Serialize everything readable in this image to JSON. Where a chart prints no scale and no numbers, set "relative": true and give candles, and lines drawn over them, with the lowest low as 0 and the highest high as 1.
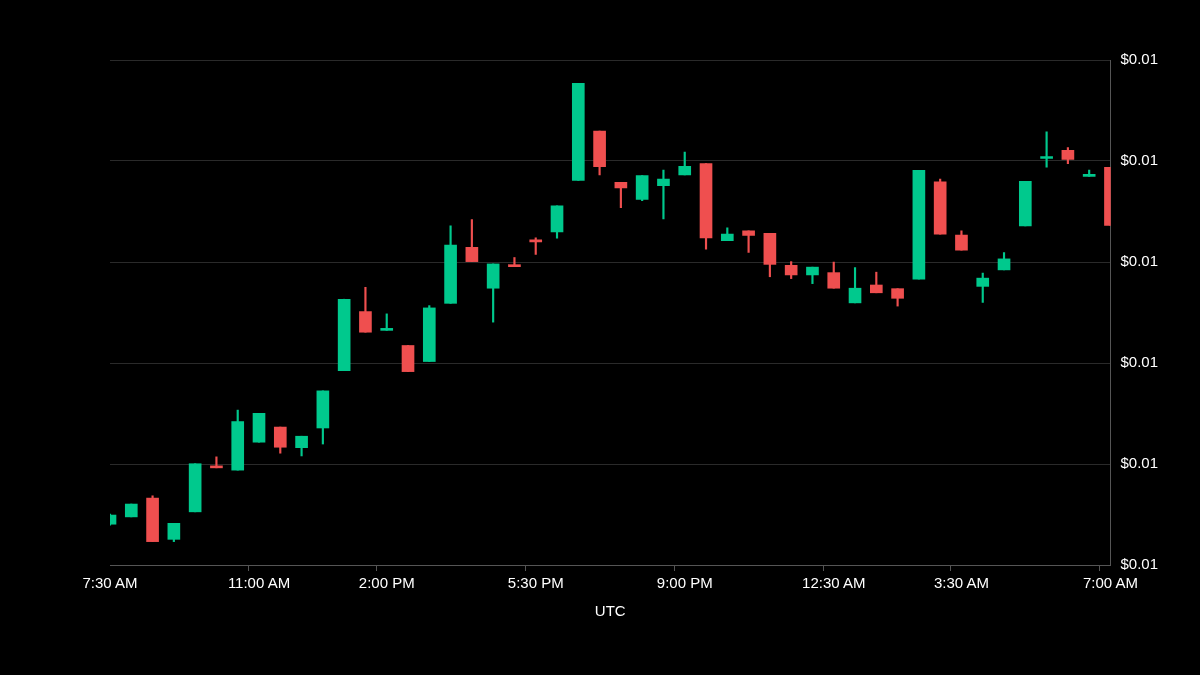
{
  "chart_data": {
    "type": "candlestick",
    "relative": true,
    "xlabel": "UTC",
    "categories": [
      "7:30 AM",
      null,
      null,
      null,
      null,
      null,
      null,
      "11:00 AM",
      null,
      null,
      null,
      null,
      null,
      "2:00 PM",
      null,
      null,
      null,
      null,
      null,
      null,
      "5:30 PM",
      null,
      null,
      null,
      null,
      null,
      null,
      "9:00 PM",
      null,
      null,
      null,
      null,
      null,
      null,
      "12:30 AM",
      null,
      null,
      null,
      null,
      null,
      "3:30 AM",
      null,
      null,
      null,
      null,
      null,
      null,
      "7:00 AM"
    ],
    "annotations": [
      "$0.01",
      "$0.01",
      "$0.01",
      "$0.01",
      "$0.01",
      "$0.01"
    ],
    "ohlc": [
      [
        0.038,
        0.06,
        0.036,
        0.058
      ],
      [
        0.054,
        0.082,
        0.054,
        0.082
      ],
      [
        0.095,
        0.1,
        0,
        0
      ],
      [
        0.005,
        0.04,
        0,
        0.04
      ],
      [
        0.065,
        0.17,
        0.065,
        0.17
      ],
      [
        0.165,
        0.185,
        0.161,
        0.161
      ],
      [
        0.156,
        0.287,
        0.156,
        0.262
      ],
      [
        0.217,
        0.28,
        0.217,
        0.28
      ],
      [
        0.25,
        0.25,
        0.193,
        0.206
      ],
      [
        0.205,
        0.23,
        0.187,
        0.23
      ],
      [
        0.248,
        0.329,
        0.213,
        0.329
      ],
      [
        0.373,
        0.529,
        0.373,
        0.529
      ],
      [
        0.502,
        0.555,
        0.457,
        0.457
      ],
      [
        0.461,
        0.497,
        0.461,
        0.463
      ],
      [
        0.428,
        0.428,
        0.371,
        0.371
      ],
      [
        0.393,
        0.515,
        0.393,
        0.51
      ],
      [
        0.52,
        0.689,
        0.52,
        0.647
      ],
      [
        0.642,
        0.703,
        0.611,
        0.611
      ],
      [
        0.553,
        0.606,
        0.479,
        0.606
      ],
      [
        0.604,
        0.62,
        0.6,
        0.6
      ],
      [
        0.658,
        0.663,
        0.627,
        0.654
      ],
      [
        0.676,
        0.733,
        0.662,
        0.733
      ],
      [
        0.788,
        1,
        0.788,
        1
      ],
      [
        0.896,
        0.896,
        0.8,
        0.818
      ],
      [
        0.784,
        0.784,
        0.729,
        0.772
      ],
      [
        0.747,
        0.799,
        0.744,
        0.799
      ],
      [
        0.777,
        0.811,
        0.704,
        0.791
      ],
      [
        0.8,
        0.85,
        0.8,
        0.819
      ],
      [
        0.825,
        0.825,
        0.638,
        0.663
      ],
      [
        0.657,
        0.685,
        0.657,
        0.671
      ],
      [
        0.678,
        0.678,
        0.631,
        0.668
      ],
      [
        0.673,
        0.673,
        0.578,
        0.605
      ],
      [
        0.603,
        0.611,
        0.574,
        0.582
      ],
      [
        0.582,
        0.599,
        0.563,
        0.599
      ],
      [
        0.587,
        0.61,
        0.553,
        0.553
      ],
      [
        0.521,
        0.598,
        0.521,
        0.553
      ],
      [
        0.56,
        0.588,
        0.543,
        0.543
      ],
      [
        0.552,
        0.552,
        0.514,
        0.531
      ],
      [
        0.573,
        0.81,
        0.573,
        0.81
      ],
      [
        0.785,
        0.791,
        0.671,
        0.671
      ],
      [
        0.669,
        0.678,
        0.636,
        0.636
      ],
      [
        0.557,
        0.586,
        0.522,
        0.575
      ],
      [
        0.593,
        0.631,
        0.593,
        0.617
      ],
      [
        0.689,
        0.786,
        0.689,
        0.786
      ],
      [
        0.836,
        0.894,
        0.817,
        0.839
      ],
      [
        0.854,
        0.86,
        0.825,
        0.834
      ],
      [
        0.797,
        0.811,
        0.797,
        0.799
      ],
      [
        0.817,
        0.817,
        0.69,
        0.69
      ]
    ],
    "colors": [
      "#00c98d",
      "#00c98d",
      "#ef4f4f",
      "#00c98d",
      "#00c98d",
      "#ef4f4f",
      "#00c98d",
      "#00c98d",
      "#ef4f4f",
      "#00c98d",
      "#00c98d",
      "#00c98d",
      "#ef4f4f",
      "#00c98d",
      "#ef4f4f",
      "#00c98d",
      "#00c98d",
      "#ef4f4f",
      "#00c98d",
      "#ef4f4f",
      "#ef4f4f",
      "#00c98d",
      "#00c98d",
      "#ef4f4f",
      "#ef4f4f",
      "#00c98d",
      "#00c98d",
      "#00c98d",
      "#ef4f4f",
      "#00c98d",
      "#ef4f4f",
      "#ef4f4f",
      "#ef4f4f",
      "#00c98d",
      "#ef4f4f",
      "#00c98d",
      "#ef4f4f",
      "#ef4f4f",
      "#00c98d",
      "#ef4f4f",
      "#ef4f4f",
      "#00c98d",
      "#00c98d",
      "#00c98d",
      "#00c98d",
      "#ef4f4f",
      "#00c98d",
      "#ef4f4f"
    ],
    "grid": "y",
    "legend": false
  }
}
